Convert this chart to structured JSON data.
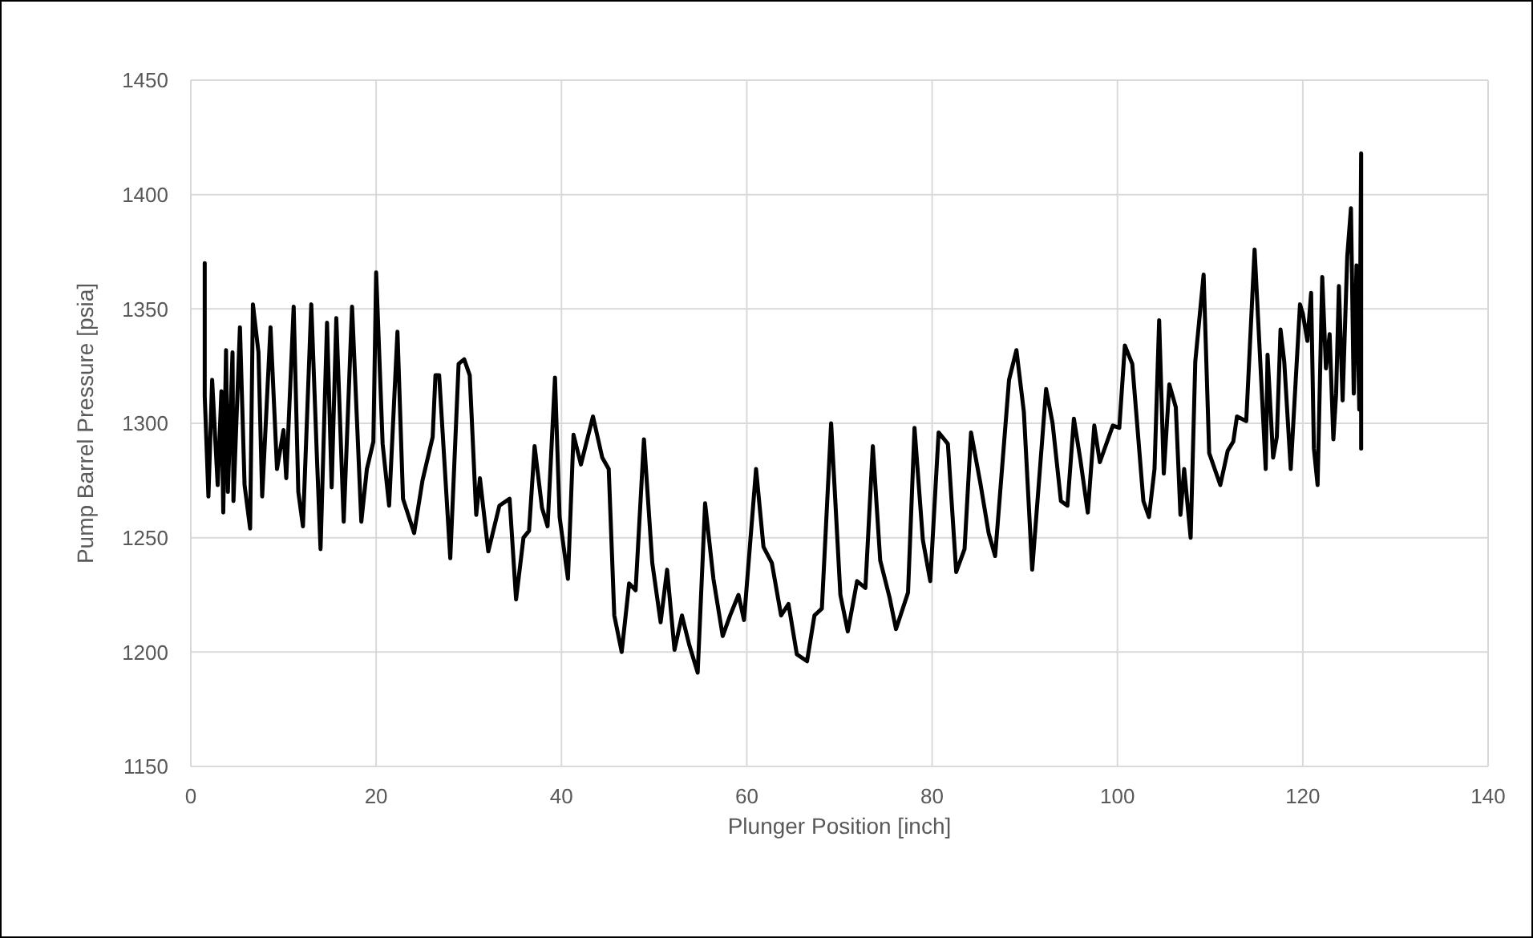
{
  "chart_data": {
    "type": "line",
    "xlabel": "Plunger Position [inch]",
    "ylabel": "Pump Barrel Pressure [psia]",
    "xlim": [
      0,
      140
    ],
    "xticks": [
      0,
      20,
      40,
      60,
      80,
      100,
      120,
      140
    ],
    "ylim": [
      1150,
      1450
    ],
    "yticks": [
      1150,
      1200,
      1250,
      1300,
      1350,
      1400,
      1450
    ],
    "grid": true,
    "marker": "none",
    "line_style": "solid",
    "series": [
      {
        "color": "#000000",
        "x": [
          1.5,
          1.5,
          1.9,
          2.3,
          2.9,
          3.3,
          3.5,
          3.8,
          4.0,
          4.5,
          4.6,
          5.3,
          5.8,
          6.4,
          6.7,
          7.3,
          7.7,
          8.6,
          9.3,
          10.0,
          10.3,
          11.1,
          11.6,
          12.1,
          13.0,
          13.6,
          14.0,
          14.7,
          15.2,
          15.7,
          16.5,
          17.4,
          18.4,
          19.0,
          19.7,
          20.0,
          20.7,
          21.4,
          22.3,
          22.9,
          24.1,
          25.0,
          26.1,
          26.4,
          26.8,
          28.0,
          28.9,
          29.5,
          30.1,
          30.8,
          31.2,
          32.1,
          33.3,
          34.4,
          35.1,
          35.9,
          36.5,
          37.1,
          37.9,
          38.5,
          39.3,
          39.8,
          40.7,
          41.3,
          42.1,
          43.4,
          44.4,
          45.1,
          45.7,
          46.5,
          47.3,
          48.0,
          48.9,
          49.8,
          50.7,
          51.4,
          52.2,
          53.0,
          53.8,
          54.7,
          55.5,
          56.4,
          57.4,
          58.2,
          59.1,
          59.7,
          61.0,
          61.8,
          62.7,
          63.7,
          64.5,
          65.4,
          66.5,
          67.3,
          68.1,
          69.1,
          70.1,
          70.9,
          71.9,
          72.8,
          73.6,
          74.4,
          75.4,
          76.1,
          77.4,
          78.1,
          79.0,
          79.8,
          80.7,
          81.7,
          82.6,
          83.5,
          84.2,
          85.2,
          86.1,
          86.8,
          88.3,
          89.1,
          89.9,
          90.8,
          92.3,
          93.0,
          93.9,
          94.6,
          95.3,
          96.0,
          96.8,
          97.5,
          98.1,
          99.5,
          100.2,
          100.8,
          101.6,
          102.8,
          103.4,
          104.0,
          104.5,
          105.0,
          105.6,
          106.3,
          106.8,
          107.2,
          107.9,
          108.4,
          109.3,
          109.9,
          111.1,
          111.9,
          112.5,
          112.9,
          113.9,
          114.8,
          116.0,
          116.2,
          116.8,
          117.2,
          117.6,
          118.0,
          118.7,
          119.7,
          120.0,
          120.5,
          120.9,
          121.2,
          121.6,
          122.1,
          122.5,
          122.9,
          123.3,
          123.6,
          123.9,
          124.3,
          124.8,
          125.2,
          125.5,
          125.8,
          126.1,
          126.3,
          126.3
        ],
        "values": [
          1370,
          1312,
          1268,
          1319,
          1273,
          1314,
          1261,
          1332,
          1270,
          1331,
          1266,
          1342,
          1273,
          1254,
          1352,
          1331,
          1268,
          1342,
          1280,
          1297,
          1276,
          1351,
          1270,
          1255,
          1352,
          1286,
          1245,
          1344,
          1272,
          1346,
          1257,
          1351,
          1257,
          1280,
          1292,
          1366,
          1291,
          1264,
          1340,
          1267,
          1252,
          1275,
          1294,
          1321,
          1321,
          1241,
          1326,
          1328,
          1321,
          1260,
          1276,
          1244,
          1264,
          1267,
          1223,
          1250,
          1253,
          1290,
          1263,
          1255,
          1320,
          1259,
          1232,
          1295,
          1282,
          1303,
          1285,
          1280,
          1216,
          1200,
          1230,
          1227,
          1293,
          1239,
          1213,
          1236,
          1201,
          1216,
          1203,
          1191,
          1265,
          1232,
          1207,
          1216,
          1225,
          1214,
          1280,
          1246,
          1239,
          1216,
          1221,
          1199,
          1196,
          1216,
          1219,
          1300,
          1225,
          1209,
          1231,
          1228,
          1290,
          1240,
          1224,
          1210,
          1226,
          1298,
          1249,
          1231,
          1296,
          1291,
          1235,
          1245,
          1296,
          1274,
          1252,
          1242,
          1319,
          1332,
          1305,
          1236,
          1315,
          1300,
          1266,
          1264,
          1302,
          1284,
          1261,
          1299,
          1283,
          1299,
          1298,
          1334,
          1326,
          1266,
          1259,
          1280,
          1345,
          1278,
          1317,
          1307,
          1260,
          1280,
          1250,
          1327,
          1365,
          1287,
          1273,
          1288,
          1292,
          1303,
          1301,
          1376,
          1280,
          1330,
          1285,
          1294,
          1341,
          1327,
          1280,
          1352,
          1348,
          1336,
          1357,
          1289,
          1273,
          1364,
          1324,
          1339,
          1293,
          1313,
          1360,
          1310,
          1373,
          1394,
          1313,
          1369,
          1306,
          1418,
          1289
        ]
      }
    ]
  }
}
